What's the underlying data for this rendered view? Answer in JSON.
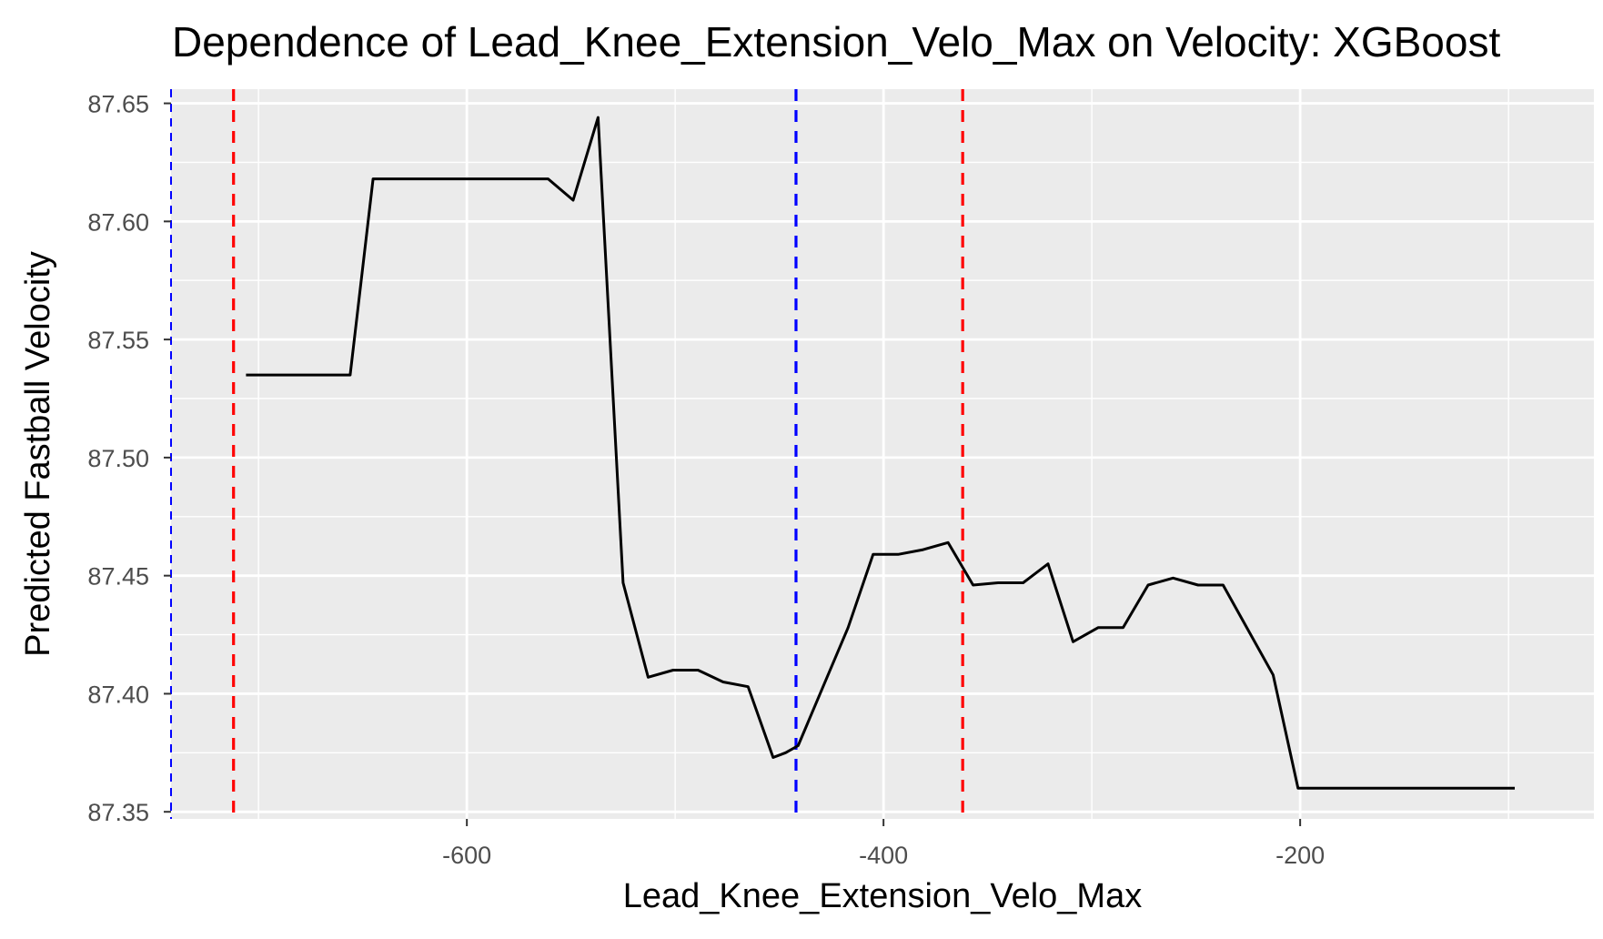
{
  "chart_data": {
    "type": "line",
    "title": "Dependence of Lead_Knee_Extension_Velo_Max on Velocity: XGBoost",
    "xlabel": "Lead_Knee_Extension_Velo_Max",
    "ylabel": "Predicted Fastball Velocity",
    "xlim": [
      -742.0,
      -59.0
    ],
    "ylim": [
      87.347,
      87.656
    ],
    "x_ticks": [
      -600,
      -400,
      -200
    ],
    "x_tick_labels": [
      "-600",
      "-400",
      "-200"
    ],
    "y_ticks": [
      87.35,
      87.4,
      87.45,
      87.5,
      87.55,
      87.6,
      87.65
    ],
    "y_tick_labels": [
      "87.35",
      "87.40",
      "87.45",
      "87.50",
      "87.55",
      "87.60",
      "87.65"
    ],
    "grid": true,
    "background": "#ebebeb",
    "series": [
      {
        "color": "#000000",
        "x": [
          -706,
          -692,
          -680,
          -668,
          -656,
          -645,
          -633,
          -621,
          -609,
          -597,
          -585,
          -573,
          -561,
          -549,
          -537,
          -525,
          -513,
          -501,
          -489,
          -477,
          -465,
          -453,
          -447,
          -441,
          -429,
          -417,
          -405,
          -393,
          -381,
          -369,
          -357,
          -345,
          -333,
          -321,
          -309,
          -297,
          -285,
          -273,
          -261,
          -249,
          -237,
          -225,
          -213,
          -201,
          -189,
          -177,
          -165,
          -153,
          -141,
          -129,
          -117,
          -105,
          -97
        ],
        "y": [
          87.535,
          87.535,
          87.535,
          87.535,
          87.535,
          87.618,
          87.618,
          87.618,
          87.618,
          87.618,
          87.618,
          87.618,
          87.618,
          87.609,
          87.644,
          87.447,
          87.407,
          87.41,
          87.41,
          87.405,
          87.403,
          87.373,
          87.375,
          87.378,
          87.403,
          87.428,
          87.459,
          87.459,
          87.461,
          87.464,
          87.446,
          87.447,
          87.447,
          87.455,
          87.422,
          87.428,
          87.428,
          87.446,
          87.449,
          87.446,
          87.446,
          87.427,
          87.408,
          87.36,
          87.36,
          87.36,
          87.36,
          87.36,
          87.36,
          87.36,
          87.36,
          87.36,
          87.36
        ]
      }
    ],
    "vlines": [
      {
        "x": -742,
        "color": "#0000ff",
        "style": "dashed"
      },
      {
        "x": -442,
        "color": "#0000ff",
        "style": "dashed"
      },
      {
        "x": -712,
        "color": "#ff0000",
        "style": "dashed"
      },
      {
        "x": -362,
        "color": "#ff0000",
        "style": "dashed"
      }
    ]
  }
}
